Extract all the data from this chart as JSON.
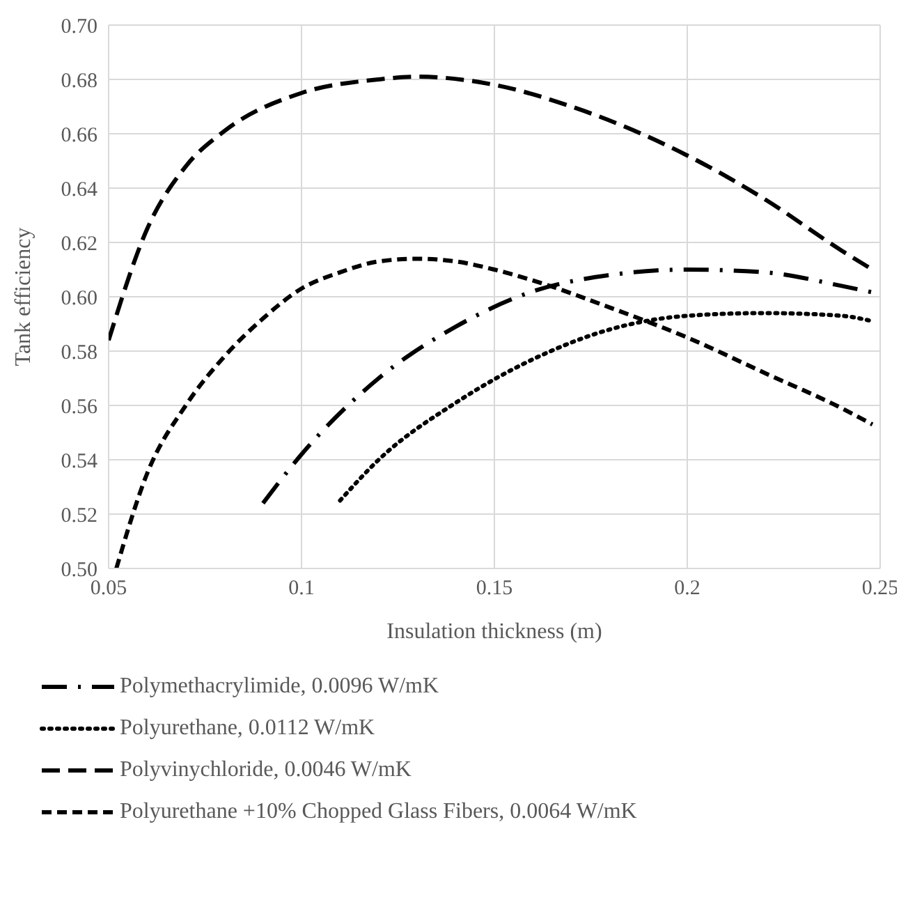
{
  "chart_data": {
    "type": "line",
    "xlabel": "Insulation thickness (m)",
    "ylabel": "Tank efficiency",
    "xlim": [
      0.05,
      0.25
    ],
    "xticks": [
      0.05,
      0.1,
      0.15,
      0.2,
      0.25
    ],
    "ylim": [
      0.5,
      0.7
    ],
    "yticks": [
      {
        "value": 0.5,
        "label": "0.50"
      },
      {
        "value": 0.52,
        "label": "0.52"
      },
      {
        "value": 0.54,
        "label": "0.54"
      },
      {
        "value": 0.56,
        "label": "0.56"
      },
      {
        "value": 0.58,
        "label": "0.58"
      },
      {
        "value": 0.6,
        "label": "0.60"
      },
      {
        "value": 0.62,
        "label": "0.62"
      },
      {
        "value": 0.64,
        "label": "0.64"
      },
      {
        "value": 0.66,
        "label": "0.66"
      },
      {
        "value": 0.68,
        "label": "0.68"
      },
      {
        "value": 0.7,
        "label": "0.70"
      }
    ],
    "grid": true,
    "legend": "bottom",
    "marker": "none",
    "series": [
      {
        "name": "Polymethacrylimide, 0.0096 W/mK",
        "color": "#000000",
        "line_style": "dashdot",
        "x": [
          0.09,
          0.1,
          0.12,
          0.14,
          0.16,
          0.18,
          0.2,
          0.22,
          0.24,
          0.25
        ],
        "values": [
          0.524,
          0.542,
          0.57,
          0.589,
          0.602,
          0.608,
          0.61,
          0.609,
          0.604,
          0.601
        ]
      },
      {
        "name": "Polyurethane, 0.0112 W/mK",
        "color": "#000000",
        "line_style": "dotted",
        "x": [
          0.11,
          0.12,
          0.14,
          0.16,
          0.18,
          0.2,
          0.22,
          0.24,
          0.248
        ],
        "values": [
          0.525,
          0.54,
          0.561,
          0.577,
          0.588,
          0.593,
          0.594,
          0.593,
          0.591
        ]
      },
      {
        "name": "Polyvinychloride, 0.0046 W/mK",
        "color": "#000000",
        "line_style": "dashed",
        "x": [
          0.05,
          0.06,
          0.07,
          0.08,
          0.1,
          0.12,
          0.13,
          0.15,
          0.17,
          0.2,
          0.22,
          0.24,
          0.248
        ],
        "values": [
          0.584,
          0.625,
          0.648,
          0.661,
          0.675,
          0.68,
          0.681,
          0.678,
          0.67,
          0.652,
          0.636,
          0.617,
          0.61
        ]
      },
      {
        "name": "Polyurethane +10% Chopped Glass Fibers, 0.0064 W/mK",
        "color": "#000000",
        "line_style": "shortdash",
        "x": [
          0.052,
          0.06,
          0.07,
          0.08,
          0.09,
          0.1,
          0.11,
          0.12,
          0.13,
          0.14,
          0.15,
          0.16,
          0.18,
          0.2,
          0.22,
          0.24,
          0.248
        ],
        "values": [
          0.5,
          0.535,
          0.56,
          0.578,
          0.592,
          0.603,
          0.609,
          0.613,
          0.614,
          0.613,
          0.61,
          0.606,
          0.596,
          0.585,
          0.572,
          0.559,
          0.553
        ]
      }
    ]
  }
}
